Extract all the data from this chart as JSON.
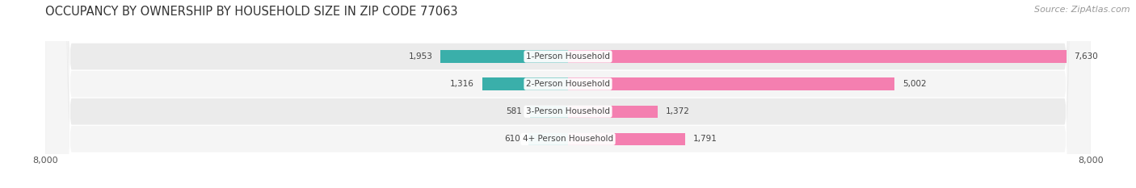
{
  "title": "OCCUPANCY BY OWNERSHIP BY HOUSEHOLD SIZE IN ZIP CODE 77063",
  "source": "Source: ZipAtlas.com",
  "categories": [
    "1-Person Household",
    "2-Person Household",
    "3-Person Household",
    "4+ Person Household"
  ],
  "owner_values": [
    1953,
    1316,
    581,
    610
  ],
  "renter_values": [
    7630,
    5002,
    1372,
    1791
  ],
  "owner_color": "#3AAFAA",
  "renter_color": "#F47FB0",
  "xlim": 8000,
  "title_fontsize": 10.5,
  "source_fontsize": 8,
  "label_fontsize": 7.5,
  "value_fontsize": 7.5,
  "tick_fontsize": 8,
  "legend_fontsize": 8.5,
  "background_color": "#FFFFFF",
  "bar_height": 0.45,
  "row_colors": [
    "#EBEBEB",
    "#F5F5F5",
    "#EBEBEB",
    "#F5F5F5"
  ]
}
